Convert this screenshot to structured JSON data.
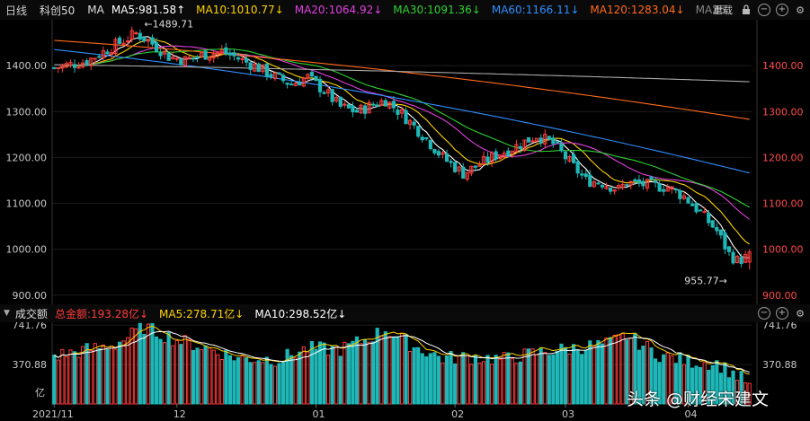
{
  "top_bar": {
    "period": "日线",
    "symbol": "科创50",
    "ma_label": "MA",
    "indicators": [
      {
        "text": "MA5:981.58↑",
        "color": "#ffffff"
      },
      {
        "text": "MA10:1010.77↓",
        "color": "#ffd200"
      },
      {
        "text": "MA20:1064.92↓",
        "color": "#e040e0"
      },
      {
        "text": "MA30:1091.36↓",
        "color": "#30d030"
      },
      {
        "text": "MA60:1166.11↓",
        "color": "#2f8fff"
      },
      {
        "text": "MA120:1283.04↓",
        "color": "#ff6a1a"
      },
      {
        "text": "MA25",
        "color": "#888888"
      }
    ],
    "reset_label": "重载"
  },
  "volume_bar": {
    "title": "成交额",
    "indicators": [
      {
        "text": "总金额:193.28亿↓",
        "color": "#ff3b3b"
      },
      {
        "text": "MA5:278.71亿↓",
        "color": "#ffd200"
      },
      {
        "text": "MA10:298.52亿↓",
        "color": "#ffffff"
      }
    ]
  },
  "watermark": "头条 @财经宋建文",
  "chart_data": [
    {
      "type": "candlestick",
      "title": "科创50",
      "ylim": [
        880,
        1500
      ],
      "y_ticks": [
        900,
        1000,
        1100,
        1200,
        1300,
        1400
      ],
      "y_tick_labels": [
        "900.00",
        "1000.00",
        "1100.00",
        "1200.00",
        "1300.00",
        "1400.00"
      ],
      "x_tick_labels": [
        "2021/11",
        "12",
        "01",
        "02",
        "03",
        "04"
      ],
      "x_tick_index": [
        0,
        30,
        64,
        98,
        125,
        155
      ],
      "annotations": [
        {
          "text": "←1489.71",
          "index": 22,
          "value": 1489.71
        },
        {
          "text": "955.77→",
          "index": 165,
          "value": 955.77
        }
      ],
      "up_color": "#ff3b3b",
      "down_color": "#1fb7b7",
      "series": [
        {
          "name": "MA5",
          "color": "#ffffff",
          "last": 981.58
        },
        {
          "name": "MA10",
          "color": "#ffd200",
          "last": 1010.77
        },
        {
          "name": "MA20",
          "color": "#e040e0",
          "last": 1064.92
        },
        {
          "name": "MA30",
          "color": "#30d030",
          "last": 1091.36
        },
        {
          "name": "MA60",
          "color": "#2f8fff",
          "last": 1166.11
        },
        {
          "name": "MA120",
          "color": "#ff6a1a",
          "last": 1283.04
        },
        {
          "name": "MA250",
          "color": "#aaaaaa",
          "last": 1365
        }
      ],
      "price_path": [
        [
          0,
          1395
        ],
        [
          8,
          1410
        ],
        [
          14,
          1440
        ],
        [
          20,
          1470
        ],
        [
          23,
          1455
        ],
        [
          28,
          1420
        ],
        [
          32,
          1412
        ],
        [
          37,
          1425
        ],
        [
          41,
          1430
        ],
        [
          44,
          1420
        ],
        [
          50,
          1395
        ],
        [
          54,
          1375
        ],
        [
          58,
          1360
        ],
        [
          62,
          1375
        ],
        [
          66,
          1345
        ],
        [
          70,
          1310
        ],
        [
          74,
          1300
        ],
        [
          78,
          1315
        ],
        [
          81,
          1325
        ],
        [
          85,
          1295
        ],
        [
          90,
          1250
        ],
        [
          95,
          1200
        ],
        [
          100,
          1165
        ],
        [
          103,
          1180
        ],
        [
          108,
          1205
        ],
        [
          112,
          1220
        ],
        [
          118,
          1248
        ],
        [
          122,
          1230
        ],
        [
          125,
          1200
        ],
        [
          130,
          1150
        ],
        [
          134,
          1145
        ],
        [
          138,
          1130
        ],
        [
          140,
          1145
        ],
        [
          145,
          1140
        ],
        [
          150,
          1135
        ],
        [
          154,
          1115
        ],
        [
          158,
          1080
        ],
        [
          162,
          1040
        ],
        [
          165,
          990
        ],
        [
          167,
          975
        ],
        [
          170,
          985
        ]
      ]
    },
    {
      "type": "bar",
      "title": "成交额",
      "unit": "亿",
      "ylim": [
        0,
        760
      ],
      "y_ticks": [
        370.88,
        741.76
      ],
      "y_tick_labels": [
        "370.88",
        "741.76"
      ],
      "bottom_label": "亿",
      "last_value": 193.28,
      "ma5_last": 278.71,
      "ma10_last": 298.52,
      "volume_path": [
        [
          0,
          450
        ],
        [
          15,
          560
        ],
        [
          22,
          720
        ],
        [
          30,
          600
        ],
        [
          38,
          520
        ],
        [
          45,
          430
        ],
        [
          55,
          420
        ],
        [
          62,
          520
        ],
        [
          70,
          510
        ],
        [
          77,
          620
        ],
        [
          81,
          700
        ],
        [
          88,
          540
        ],
        [
          95,
          430
        ],
        [
          102,
          440
        ],
        [
          110,
          420
        ],
        [
          118,
          480
        ],
        [
          126,
          520
        ],
        [
          135,
          560
        ],
        [
          140,
          640
        ],
        [
          148,
          460
        ],
        [
          155,
          400
        ],
        [
          162,
          380
        ],
        [
          170,
          193.28
        ]
      ]
    }
  ]
}
